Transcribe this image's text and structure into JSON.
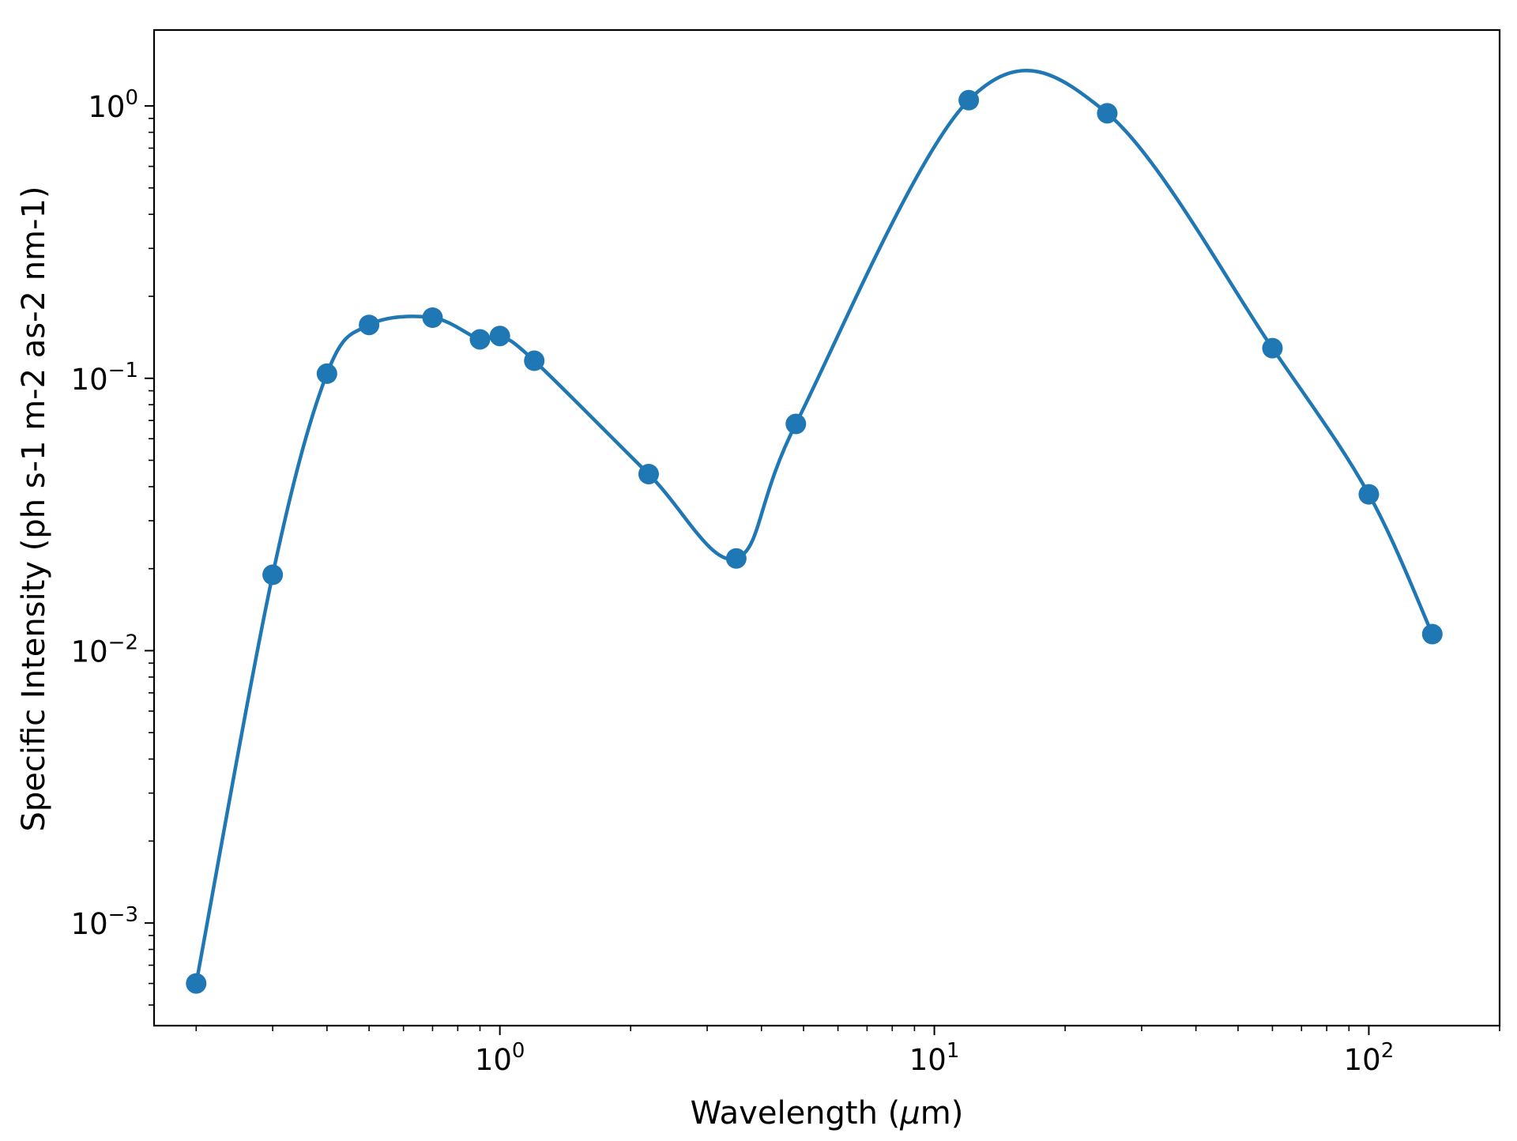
{
  "chart_data": {
    "type": "line",
    "xlabel": "Wavelength (μm)",
    "xlabel_parts": {
      "before": "Wavelength (",
      "mu": "μ",
      "after": "m)"
    },
    "ylabel": "Specific Intensity (ph s-1 m-2 as-2 nm-1)",
    "x_scale": "log",
    "y_scale": "log",
    "xlim": [
      0.16,
      200
    ],
    "ylim": [
      0.00042,
      1.9
    ],
    "x_ticks": [
      {
        "base": "10",
        "exp": "0",
        "value": 1
      },
      {
        "base": "10",
        "exp": "1",
        "value": 10
      },
      {
        "base": "10",
        "exp": "2",
        "value": 100
      }
    ],
    "y_ticks": [
      {
        "base": "10",
        "exp": "−3",
        "value": 0.001
      },
      {
        "base": "10",
        "exp": "−2",
        "value": 0.01
      },
      {
        "base": "10",
        "exp": "−1",
        "value": 0.1
      },
      {
        "base": "10",
        "exp": "0",
        "value": 1
      }
    ],
    "grid": false,
    "legend": "none",
    "series": [
      {
        "color": "#1f77b4",
        "marker": "circle",
        "points": [
          {
            "x": 0.2,
            "y": 0.0006
          },
          {
            "x": 0.3,
            "y": 0.019
          },
          {
            "x": 0.4,
            "y": 0.104
          },
          {
            "x": 0.5,
            "y": 0.157
          },
          {
            "x": 0.7,
            "y": 0.167
          },
          {
            "x": 0.9,
            "y": 0.139
          },
          {
            "x": 1.0,
            "y": 0.143
          },
          {
            "x": 1.2,
            "y": 0.116
          },
          {
            "x": 2.2,
            "y": 0.0445
          },
          {
            "x": 3.5,
            "y": 0.0218
          },
          {
            "x": 4.8,
            "y": 0.068
          },
          {
            "x": 12,
            "y": 1.05
          },
          {
            "x": 25,
            "y": 0.94
          },
          {
            "x": 60,
            "y": 0.129
          },
          {
            "x": 100,
            "y": 0.0375
          },
          {
            "x": 140,
            "y": 0.0115
          }
        ]
      }
    ]
  }
}
